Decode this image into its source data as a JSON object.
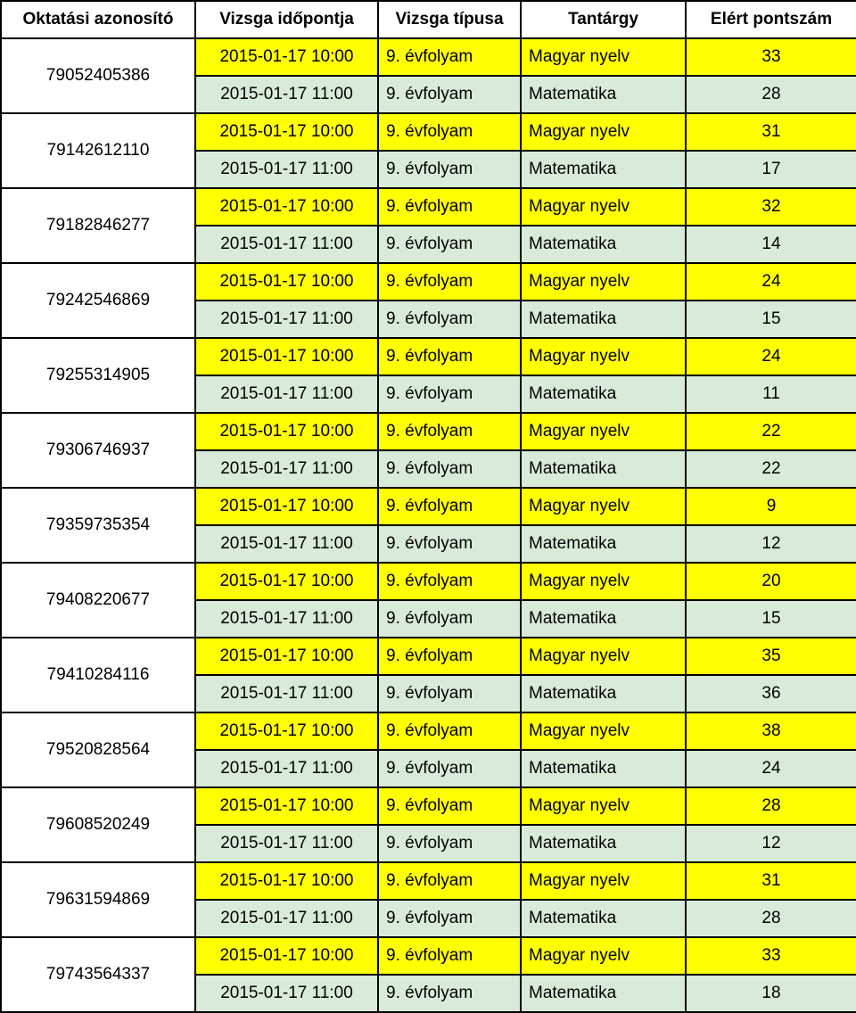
{
  "colors": {
    "yellow": "#ffff00",
    "green": "#d8ebd8",
    "white": "#ffffff",
    "border": "#000000",
    "text": "#000000"
  },
  "header": {
    "id": "Oktatási azonosító",
    "time": "Vizsga időpontja",
    "type": "Vizsga típusa",
    "subject": "Tantárgy",
    "score": "Elért pontszám"
  },
  "labels": {
    "time_a": "2015-01-17 10:00",
    "time_b": "2015-01-17 11:00",
    "type": "9. évfolyam",
    "subject_a": "Magyar nyelv",
    "subject_b": "Matematika"
  },
  "students": [
    {
      "id": "79052405386",
      "m": 33,
      "mat": 28
    },
    {
      "id": "79142612110",
      "m": 31,
      "mat": 17
    },
    {
      "id": "79182846277",
      "m": 32,
      "mat": 14
    },
    {
      "id": "79242546869",
      "m": 24,
      "mat": 15
    },
    {
      "id": "79255314905",
      "m": 24,
      "mat": 11
    },
    {
      "id": "79306746937",
      "m": 22,
      "mat": 22
    },
    {
      "id": "79359735354",
      "m": 9,
      "mat": 12
    },
    {
      "id": "79408220677",
      "m": 20,
      "mat": 15
    },
    {
      "id": "79410284116",
      "m": 35,
      "mat": 36
    },
    {
      "id": "79520828564",
      "m": 38,
      "mat": 24
    },
    {
      "id": "79608520249",
      "m": 28,
      "mat": 12
    },
    {
      "id": "79631594869",
      "m": 31,
      "mat": 28
    },
    {
      "id": "79743564337",
      "m": 33,
      "mat": 18
    }
  ]
}
